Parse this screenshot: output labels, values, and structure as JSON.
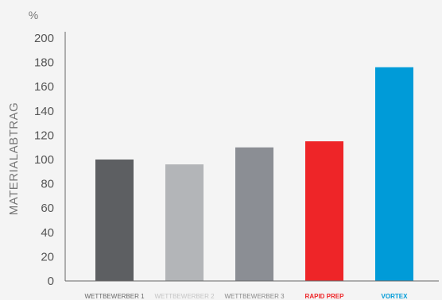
{
  "chart_data": {
    "type": "bar",
    "unit_label": "%",
    "ylabel": "MATERIALABTRAG",
    "ylim": [
      0,
      200
    ],
    "yticks": [
      0,
      20,
      40,
      60,
      80,
      100,
      120,
      140,
      160,
      180,
      200
    ],
    "grid": false,
    "legend": "none",
    "categories": [
      "WETTBEWERBER 1",
      "WETTBEWERBER 2",
      "WETTBEWERBER 3",
      "RAPID PREP",
      "VORTEX"
    ],
    "values": [
      100,
      96,
      110,
      115,
      176
    ],
    "bar_colors": [
      "#5d5f62",
      "#b3b5b8",
      "#8b8e94",
      "#ee2528",
      "#009bd8"
    ],
    "label_colors": [
      "#666666",
      "#c4c4c4",
      "#888888",
      "#ee2528",
      "#009bd8"
    ],
    "label_bold": [
      false,
      false,
      false,
      true,
      true
    ]
  }
}
